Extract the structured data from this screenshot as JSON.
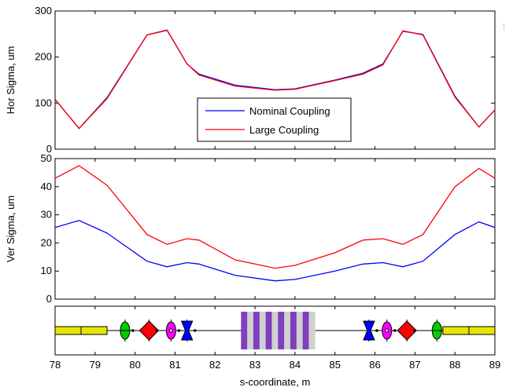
{
  "chart_data": [
    {
      "type": "line",
      "ylabel": "Hor Sigma, um",
      "xlabel": "",
      "xlim": [
        78,
        89
      ],
      "ylim": [
        0,
        300
      ],
      "yticks": [
        0,
        100,
        200,
        300
      ],
      "legend": {
        "placement": "center-bottom",
        "entries": [
          "Nominal Coupling",
          "Large Coupling"
        ]
      },
      "series": [
        {
          "name": "Nominal Coupling",
          "color": "#0000ff",
          "x": [
            78.0,
            78.6,
            79.3,
            80.3,
            80.8,
            81.3,
            81.6,
            82.5,
            83.5,
            84.0,
            85.0,
            85.7,
            86.2,
            86.7,
            87.2,
            88.0,
            88.6,
            89.0
          ],
          "y": [
            108,
            45,
            112,
            248,
            258,
            185,
            163,
            139,
            129,
            131,
            150,
            165,
            185,
            256,
            249,
            115,
            48,
            85
          ]
        },
        {
          "name": "Large Coupling",
          "color": "#ff0000",
          "x": [
            78.0,
            78.6,
            79.3,
            80.3,
            80.8,
            81.3,
            81.6,
            82.5,
            83.5,
            84.0,
            85.0,
            85.7,
            86.2,
            86.7,
            87.2,
            88.0,
            88.6,
            89.0
          ],
          "y": [
            108,
            45,
            110,
            248,
            259,
            185,
            161,
            137,
            128,
            130,
            149,
            163,
            183,
            257,
            248,
            113,
            48,
            85
          ]
        }
      ]
    },
    {
      "type": "line",
      "ylabel": "Ver Sigma, um",
      "xlabel": "",
      "xlim": [
        78,
        89
      ],
      "ylim": [
        0,
        50
      ],
      "yticks": [
        0,
        10,
        20,
        30,
        40,
        50
      ],
      "series": [
        {
          "name": "Nominal Coupling",
          "color": "#0000ff",
          "x": [
            78.0,
            78.6,
            79.3,
            80.3,
            80.8,
            81.3,
            81.6,
            82.5,
            83.5,
            84.0,
            85.0,
            85.7,
            86.2,
            86.7,
            87.2,
            88.0,
            88.6,
            89.0
          ],
          "y": [
            25.5,
            28,
            23.5,
            13.5,
            11.5,
            13,
            12.5,
            8.5,
            6.5,
            7,
            10,
            12.5,
            13,
            11.5,
            13.5,
            23,
            27.5,
            25.5
          ]
        },
        {
          "name": "Large Coupling",
          "color": "#ff0000",
          "x": [
            78.0,
            78.6,
            79.3,
            80.3,
            80.8,
            81.3,
            81.6,
            82.5,
            83.5,
            84.0,
            85.0,
            85.7,
            86.2,
            86.7,
            87.2,
            88.0,
            88.6,
            89.0
          ],
          "y": [
            43,
            47.5,
            40.5,
            23,
            19.5,
            21.5,
            21,
            14,
            11,
            12,
            16.5,
            21,
            21.5,
            19.5,
            23,
            40,
            46.5,
            43
          ]
        }
      ]
    },
    {
      "type": "table",
      "title": "",
      "xlabel": "s-coordinate, m",
      "xlim": [
        78,
        89
      ],
      "xticks": [
        78,
        79,
        80,
        81,
        82,
        83,
        84,
        85,
        86,
        87,
        88,
        89
      ],
      "elements": [
        {
          "kind": "bend",
          "s": [
            78.0,
            79.3
          ],
          "color": "#e6e600"
        },
        {
          "kind": "sextupole",
          "s": 79.75,
          "color": "#00cc00"
        },
        {
          "kind": "dipole-corrector",
          "s": 80.35,
          "color": "#ff0000"
        },
        {
          "kind": "octupole",
          "s": 80.9,
          "color": "#ff00ff"
        },
        {
          "kind": "quadrupole",
          "s": 81.3,
          "color": "#0000ff"
        },
        {
          "kind": "wiggler",
          "s": [
            82.65,
            84.5
          ],
          "colors": [
            "#7f3fbf",
            "#d0d0d0"
          ]
        },
        {
          "kind": "quadrupole",
          "s": 85.85,
          "color": "#0000ff"
        },
        {
          "kind": "octupole",
          "s": 86.3,
          "color": "#ff00ff"
        },
        {
          "kind": "dipole-corrector",
          "s": 86.8,
          "color": "#ff0000"
        },
        {
          "kind": "sextupole",
          "s": 87.55,
          "color": "#00cc00"
        },
        {
          "kind": "bend",
          "s": [
            87.7,
            89.0
          ],
          "color": "#e6e600"
        }
      ]
    }
  ]
}
